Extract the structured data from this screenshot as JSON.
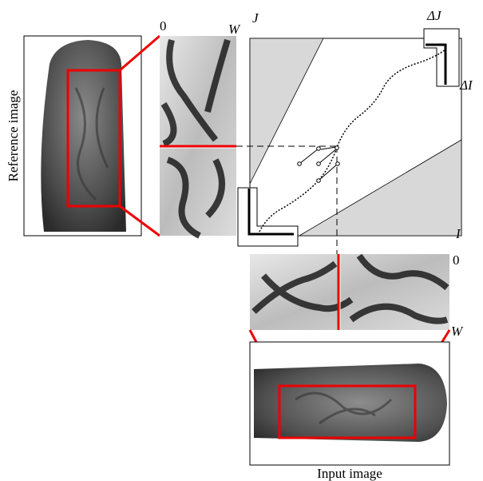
{
  "reference_image": {
    "label": "Reference image"
  },
  "reference_crop": {
    "start_label": "0",
    "end_label": "W"
  },
  "matrix": {
    "j_axis": "J",
    "i_axis": "I",
    "delta_j": "ΔJ",
    "delta_i": "ΔI"
  },
  "input_crop": {
    "start_label": "0",
    "end_label": "W"
  },
  "input_image": {
    "label": "Input image"
  }
}
